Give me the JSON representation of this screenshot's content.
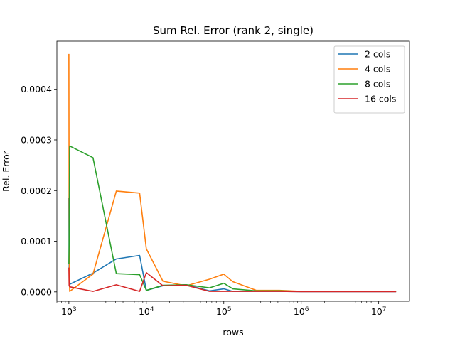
{
  "chart_data": {
    "type": "line",
    "title": "Sum Rel. Error (rank 2, single)",
    "xlabel": "rows",
    "ylabel": "Rel. Error",
    "xscale": "log",
    "xlim": [
      700,
      25000000
    ],
    "ylim": [
      -1.85e-05,
      0.000495
    ],
    "grid": false,
    "legend_position": "top-right",
    "x_ticks": [
      {
        "value": 1000,
        "base": "10",
        "exp": "3"
      },
      {
        "value": 10000,
        "base": "10",
        "exp": "4"
      },
      {
        "value": 100000,
        "base": "10",
        "exp": "5"
      },
      {
        "value": 1000000,
        "base": "10",
        "exp": "6"
      },
      {
        "value": 10000000,
        "base": "10",
        "exp": "7"
      }
    ],
    "y_ticks": [
      {
        "value": 0.0,
        "label": "0.0000"
      },
      {
        "value": 0.0001,
        "label": "0.0001"
      },
      {
        "value": 0.0002,
        "label": "0.0002"
      },
      {
        "value": 0.0003,
        "label": "0.0003"
      },
      {
        "value": 0.0004,
        "label": "0.0004"
      }
    ],
    "series": [
      {
        "name": "2 cols",
        "color": "#1f77b4",
        "x": [
          1000,
          1008,
          1024,
          2048,
          4096,
          8192,
          10000,
          16384,
          32768,
          65536,
          100000,
          131072,
          262144,
          524288,
          1000000,
          2097152,
          4194304,
          8388608,
          16777216
        ],
        "y": [
          0.000185,
          4.8e-05,
          1.5e-05,
          3.7e-05,
          6.5e-05,
          7.2e-05,
          3e-06,
          1.2e-05,
          1.4e-05,
          2e-06,
          6e-06,
          1e-06,
          1e-06,
          1e-06,
          5e-07,
          5e-07,
          5e-07,
          5e-07,
          5e-07
        ]
      },
      {
        "name": "4 cols",
        "color": "#ff7f0e",
        "x": [
          1000,
          1008,
          1024,
          2048,
          4096,
          8192,
          10000,
          16384,
          32768,
          65536,
          100000,
          131072,
          262144,
          524288,
          1000000,
          2097152,
          4194304,
          8388608,
          16777216
        ],
        "y": [
          0.00047,
          0.0001,
          1e-06,
          3.5e-05,
          0.000199,
          0.000195,
          8.5e-05,
          2.1e-05,
          1.2e-05,
          2.5e-05,
          3.5e-05,
          2e-05,
          3e-06,
          3e-06,
          1e-06,
          1e-06,
          1e-06,
          1e-06,
          1e-06
        ]
      },
      {
        "name": "8 cols",
        "color": "#2ca02c",
        "x": [
          1000,
          1008,
          1024,
          2048,
          4096,
          8192,
          10000,
          16384,
          32768,
          65536,
          100000,
          131072,
          262144,
          524288,
          1000000,
          2097152,
          4194304,
          8388608,
          16777216
        ],
        "y": [
          5.5e-05,
          0.0001,
          0.000288,
          0.000265,
          3.6e-05,
          3.4e-05,
          3e-06,
          1.3e-05,
          1.4e-05,
          8e-06,
          1.7e-05,
          6e-06,
          2e-06,
          2e-06,
          1e-06,
          1e-06,
          1e-06,
          1e-06,
          1e-06
        ]
      },
      {
        "name": "16 cols",
        "color": "#d62728",
        "x": [
          1000,
          1008,
          1024,
          2048,
          4096,
          8192,
          10000,
          16384,
          32768,
          65536,
          100000,
          131072,
          262144,
          524288,
          1000000,
          2097152,
          4194304,
          8388608,
          16777216
        ],
        "y": [
          4.8e-05,
          1.2e-05,
          1e-05,
          1e-06,
          1.4e-05,
          1e-06,
          3.8e-05,
          1.2e-05,
          1.3e-05,
          1e-06,
          1e-06,
          1e-06,
          1e-06,
          1e-06,
          5e-07,
          5e-07,
          5e-07,
          5e-07,
          5e-07
        ]
      }
    ]
  }
}
